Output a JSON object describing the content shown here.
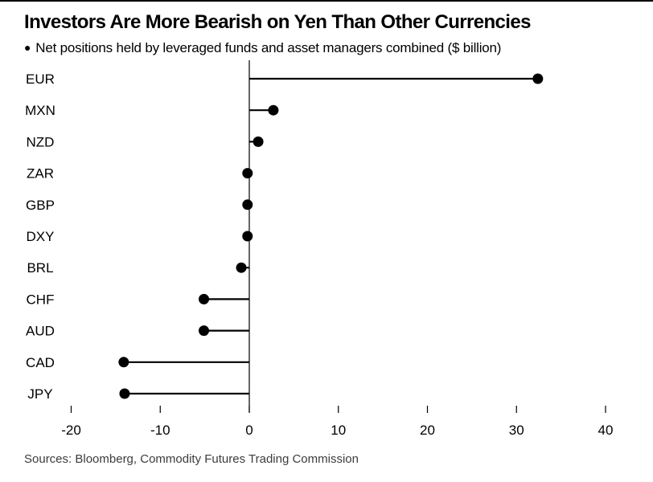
{
  "chart_data": {
    "type": "bar",
    "variant": "horizontal-lollipop",
    "title": "Investors Are More Bearish on Yen Than Other Currencies",
    "legend_marker": "●",
    "subtitle": "Net positions held by leveraged funds and asset managers combined ($ billion)",
    "source": "Sources: Bloomberg, Commodity Futures Trading Commission",
    "categories": [
      "EUR",
      "MXN",
      "NZD",
      "ZAR",
      "GBP",
      "DXY",
      "BRL",
      "CHF",
      "AUD",
      "CAD",
      "JPY"
    ],
    "values": [
      32.4,
      2.7,
      1.0,
      -0.2,
      -0.2,
      -0.2,
      -0.9,
      -5.1,
      -5.1,
      -14.1,
      -14.0
    ],
    "xlabel": "",
    "ylabel": "",
    "xlim": [
      -20,
      40
    ],
    "xticks": [
      -20,
      -10,
      0,
      10,
      20,
      30,
      40
    ],
    "grid": false,
    "legend_position": "none",
    "colors": {
      "marker": "#000000",
      "stem": "#000000",
      "axis": "#000000",
      "tick_text": "#000000",
      "category_text": "#000000",
      "source_text": "#3c3c3c",
      "background": "#ffffff",
      "top_rule": "#000000"
    }
  }
}
